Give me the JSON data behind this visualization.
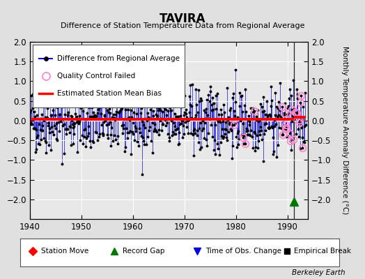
{
  "title": "TAVIRA",
  "subtitle": "Difference of Station Temperature Data from Regional Average",
  "ylabel": "Monthly Temperature Anomaly Difference (°C)",
  "xlim": [
    1940,
    1994
  ],
  "ylim": [
    -2.5,
    2.0
  ],
  "yticks": [
    -2.0,
    -1.5,
    -1.0,
    -0.5,
    0.0,
    0.5,
    1.0,
    1.5,
    2.0
  ],
  "xticks": [
    1940,
    1950,
    1960,
    1970,
    1980,
    1990
  ],
  "bias_y": 0.03,
  "bias_x1": 1940,
  "bias_x2": 1991.3,
  "bias2_y": 0.09,
  "bias2_x1": 1991.3,
  "bias2_x2": 1993.5,
  "vline_x": 1991.3,
  "background_color": "#e0e0e0",
  "plot_bg_color": "#e8e8e8",
  "grid_color": "#ffffff",
  "line_color": "#0000dd",
  "bias_color": "#ff0000",
  "qc_color": "#ff88cc",
  "record_gap_color": "#007700",
  "record_gap_x": 1991.2,
  "record_gap_y": -2.05,
  "dot_color": "#000000",
  "berkeley_earth_text": "Berkeley Earth",
  "seed": 42,
  "seed2": 99,
  "data_end": 1993.5,
  "n_qc_late": 18,
  "n_qc_mid": 4,
  "qc_late_start": 1988.5,
  "qc_mid_start": 1978.0,
  "qc_mid_end": 1988.0
}
